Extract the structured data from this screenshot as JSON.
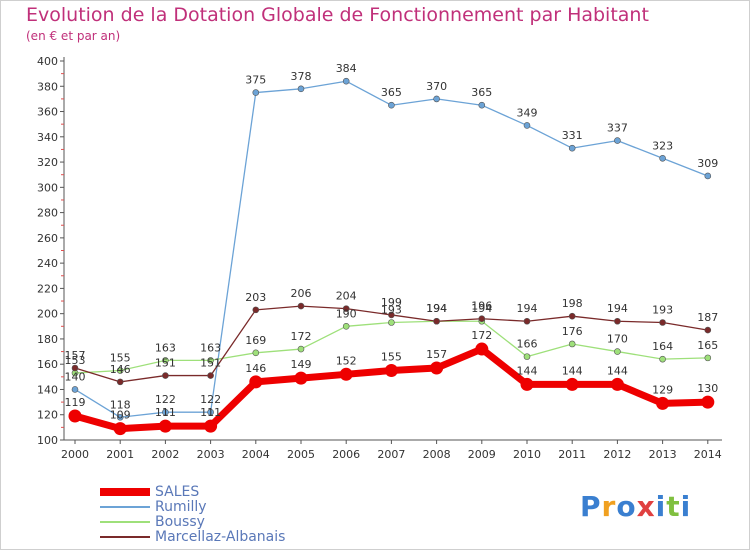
{
  "chart_data": {
    "type": "line",
    "title": "Evolution de la Dotation Globale de Fonctionnement par Habitant",
    "subtitle": "(en € et par an)",
    "xlabel": "",
    "ylabel": "",
    "ylim": [
      100,
      400
    ],
    "yticks": [
      100,
      120,
      140,
      160,
      180,
      200,
      220,
      240,
      260,
      280,
      300,
      320,
      340,
      360,
      380,
      400
    ],
    "categories": [
      "2000",
      "2001",
      "2002",
      "2003",
      "2004",
      "2005",
      "2006",
      "2007",
      "2008",
      "2009",
      "2010",
      "2011",
      "2012",
      "2013",
      "2014"
    ],
    "grid": false,
    "legend_position": "bottom-left",
    "series": [
      {
        "name": "SALES",
        "color": "#ee0000",
        "values": [
          119,
          109,
          111,
          111,
          146,
          149,
          152,
          155,
          157,
          172,
          144,
          144,
          144,
          129,
          130
        ],
        "labels": [
          "119",
          "109",
          "111",
          "111",
          "146",
          "149",
          "152",
          "155",
          "157",
          "172",
          "144",
          "144",
          "144",
          "129",
          "130"
        ]
      },
      {
        "name": "Rumilly",
        "color": "#6ca3d6",
        "values": [
          140,
          118,
          122,
          122,
          375,
          378,
          384,
          365,
          370,
          365,
          349,
          331,
          337,
          323,
          309
        ],
        "labels": [
          "140",
          "118",
          "122",
          "122",
          "375",
          "378",
          "384",
          "365",
          "370",
          "365",
          "349",
          "331",
          "337",
          "323",
          "309"
        ]
      },
      {
        "name": "Boussy",
        "color": "#9ee07a",
        "values": [
          153,
          155,
          163,
          163,
          169,
          172,
          190,
          193,
          194,
          194,
          166,
          176,
          170,
          164,
          165
        ],
        "labels": [
          "153",
          "155",
          "163",
          "163",
          "169",
          "172",
          "190",
          "193",
          "194",
          "194",
          "166",
          "176",
          "170",
          "164",
          "165"
        ]
      },
      {
        "name": "Marcellaz-Albanais",
        "color": "#7a2a2a",
        "values": [
          157,
          146,
          151,
          151,
          203,
          206,
          204,
          199,
          194,
          196,
          194,
          198,
          194,
          193,
          187
        ],
        "labels": [
          "157",
          "146",
          "151",
          "151",
          "203",
          "206",
          "204",
          "199",
          "194",
          "196",
          "194",
          "198",
          "194",
          "193",
          "187"
        ]
      }
    ]
  },
  "logo": {
    "letters": [
      "P",
      "r",
      "o",
      "x",
      "i",
      "t",
      "i"
    ],
    "colors": [
      "#3a7fd0",
      "#f0a020",
      "#3a7fd0",
      "#e04040",
      "#3a7fd0",
      "#80c040",
      "#3a7fd0"
    ]
  }
}
